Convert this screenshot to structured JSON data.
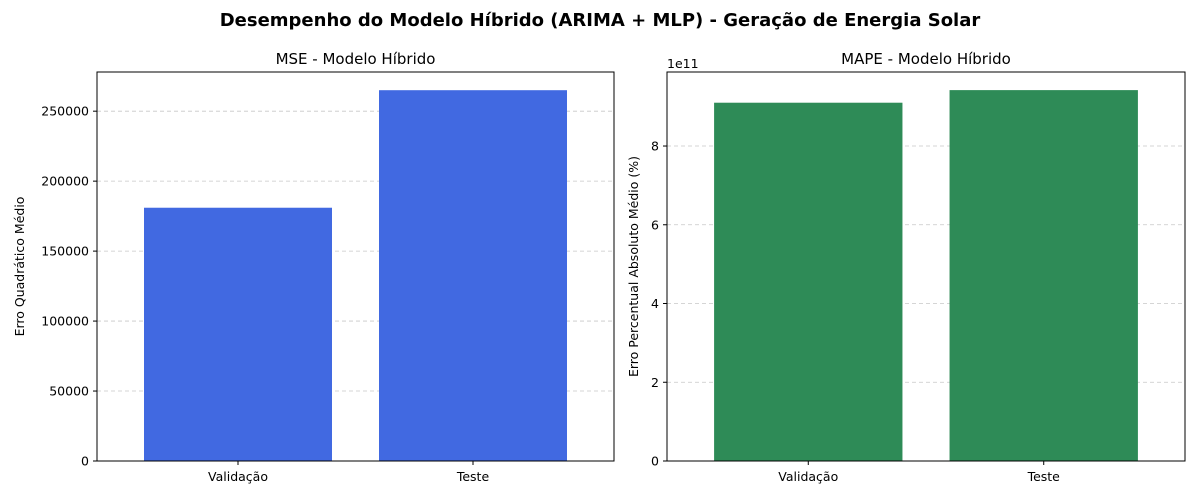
{
  "figure": {
    "suptitle": "Desempenho do Modelo Híbrido (ARIMA + MLP) - Geração de Energia Solar"
  },
  "chart_data": [
    {
      "type": "bar",
      "title": "MSE - Modelo Híbrido",
      "xlabel": "",
      "ylabel": "Erro Quadrático Médio",
      "categories": [
        "Validação",
        "Teste"
      ],
      "values": [
        181000,
        265000
      ],
      "ylim": [
        0,
        278000
      ],
      "yticks": [
        0,
        50000,
        100000,
        150000,
        200000,
        250000
      ],
      "ytick_labels": [
        "0",
        "50000",
        "100000",
        "150000",
        "200000",
        "250000"
      ],
      "scale_label": "",
      "color": "#4169E1",
      "grid": "y-dashed"
    },
    {
      "type": "bar",
      "title": "MAPE - Modelo Híbrido",
      "xlabel": "",
      "ylabel": "Erro Percentual Absoluto Médio (%)",
      "categories": [
        "Validação",
        "Teste"
      ],
      "values": [
        910000000000,
        942000000000
      ],
      "ylim": [
        0,
        988000000000
      ],
      "yticks": [
        0,
        200000000000,
        400000000000,
        600000000000,
        800000000000
      ],
      "ytick_labels": [
        "0",
        "2",
        "4",
        "6",
        "8"
      ],
      "scale_label": "1e11",
      "color": "#2E8B57",
      "grid": "y-dashed"
    }
  ]
}
